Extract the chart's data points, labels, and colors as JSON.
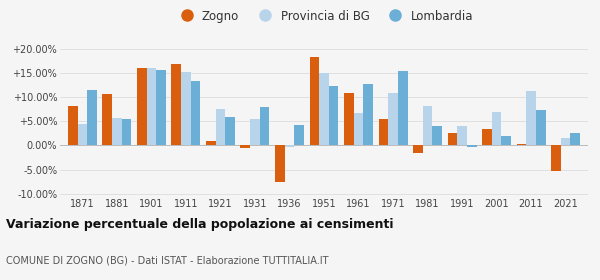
{
  "years": [
    1871,
    1881,
    1901,
    1911,
    1921,
    1931,
    1936,
    1951,
    1961,
    1971,
    1981,
    1991,
    2001,
    2011,
    2021
  ],
  "zogno": [
    8.2,
    10.7,
    16.1,
    17.0,
    0.9,
    -0.5,
    -7.5,
    18.4,
    10.9,
    5.6,
    -1.5,
    2.5,
    3.5,
    0.4,
    -5.3
  ],
  "provincia": [
    4.5,
    5.8,
    16.0,
    15.2,
    7.5,
    5.5,
    -0.3,
    15.0,
    6.7,
    11.0,
    8.3,
    4.0,
    6.9,
    11.4,
    1.5
  ],
  "lombardia": [
    11.5,
    5.5,
    15.6,
    13.3,
    6.0,
    7.9,
    4.2,
    12.3,
    12.8,
    15.4,
    4.0,
    -0.3,
    2.0,
    7.3,
    2.5
  ],
  "color_zogno": "#d95f0e",
  "color_provincia": "#b8d4ea",
  "color_lombardia": "#6baed6",
  "ylim": [
    -10.5,
    21.5
  ],
  "yticks": [
    -10,
    -5,
    0,
    5,
    10,
    15,
    20
  ],
  "ytick_labels": [
    "-10.00%",
    "-5.00%",
    "0.00%",
    "+5.00%",
    "+10.00%",
    "+15.00%",
    "+20.00%"
  ],
  "title": "Variazione percentuale della popolazione ai censimenti",
  "subtitle": "COMUNE DI ZOGNO (BG) - Dati ISTAT - Elaborazione TUTTITALIA.IT",
  "legend_labels": [
    "Zogno",
    "Provincia di BG",
    "Lombardia"
  ],
  "bar_width": 0.28,
  "bg_color": "#f5f5f5"
}
